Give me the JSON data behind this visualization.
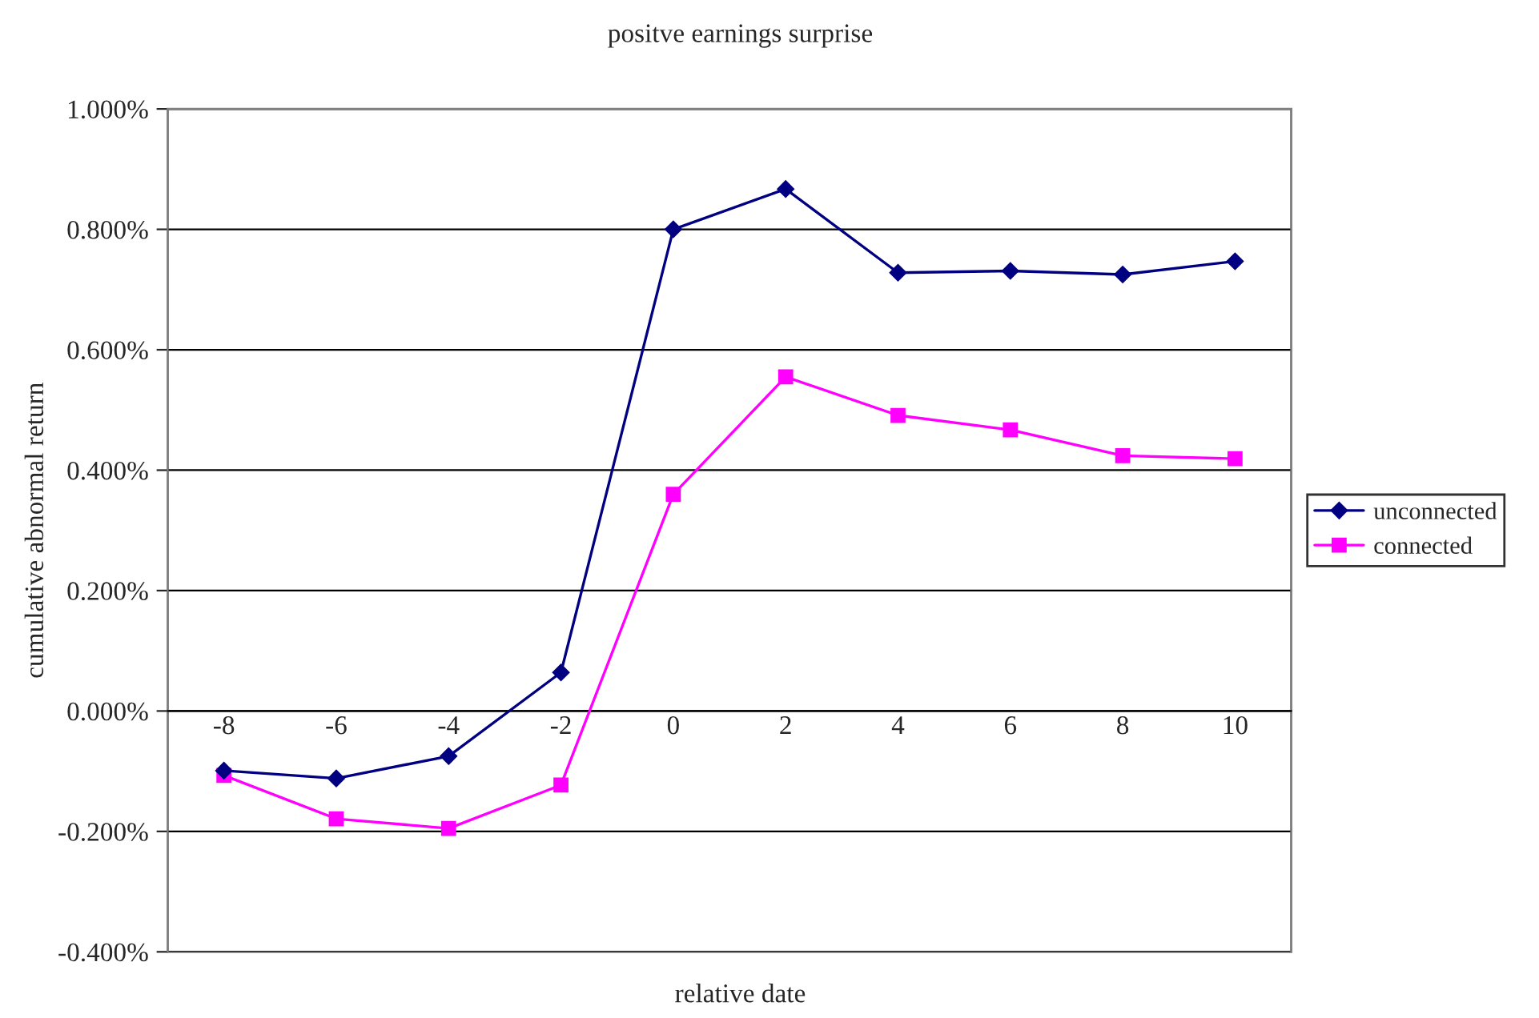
{
  "chart_data": {
    "type": "line",
    "title": "positve earnings surprise",
    "xlabel": "relative date",
    "ylabel": "cumulative abnormal return",
    "categories": [
      "-8",
      "-6",
      "-4",
      "-2",
      "0",
      "2",
      "4",
      "6",
      "8",
      "10"
    ],
    "series": [
      {
        "name": "unconnected",
        "color": "#000080",
        "marker": "diamond",
        "values": [
          -0.099,
          -0.112,
          -0.075,
          0.064,
          0.8,
          0.867,
          0.728,
          0.731,
          0.725,
          0.747
        ]
      },
      {
        "name": "connected",
        "color": "#ff00ff",
        "marker": "square",
        "values": [
          -0.107,
          -0.179,
          -0.195,
          -0.123,
          0.36,
          0.555,
          0.491,
          0.467,
          0.424,
          0.419
        ]
      }
    ],
    "ylim": [
      -0.4,
      1.0
    ],
    "yticks": [
      {
        "value": -0.4,
        "label": "-0.400%"
      },
      {
        "value": -0.2,
        "label": "-0.200%"
      },
      {
        "value": 0,
        "label": "0.000%"
      },
      {
        "value": 0.2,
        "label": "0.200%"
      },
      {
        "value": 0.4,
        "label": "0.400%"
      },
      {
        "value": 0.6,
        "label": "0.600%"
      },
      {
        "value": 0.8,
        "label": "0.800%"
      },
      {
        "value": 1.0,
        "label": "1.000%"
      }
    ],
    "grid": "y",
    "legend": "right",
    "line_style": "solid"
  }
}
